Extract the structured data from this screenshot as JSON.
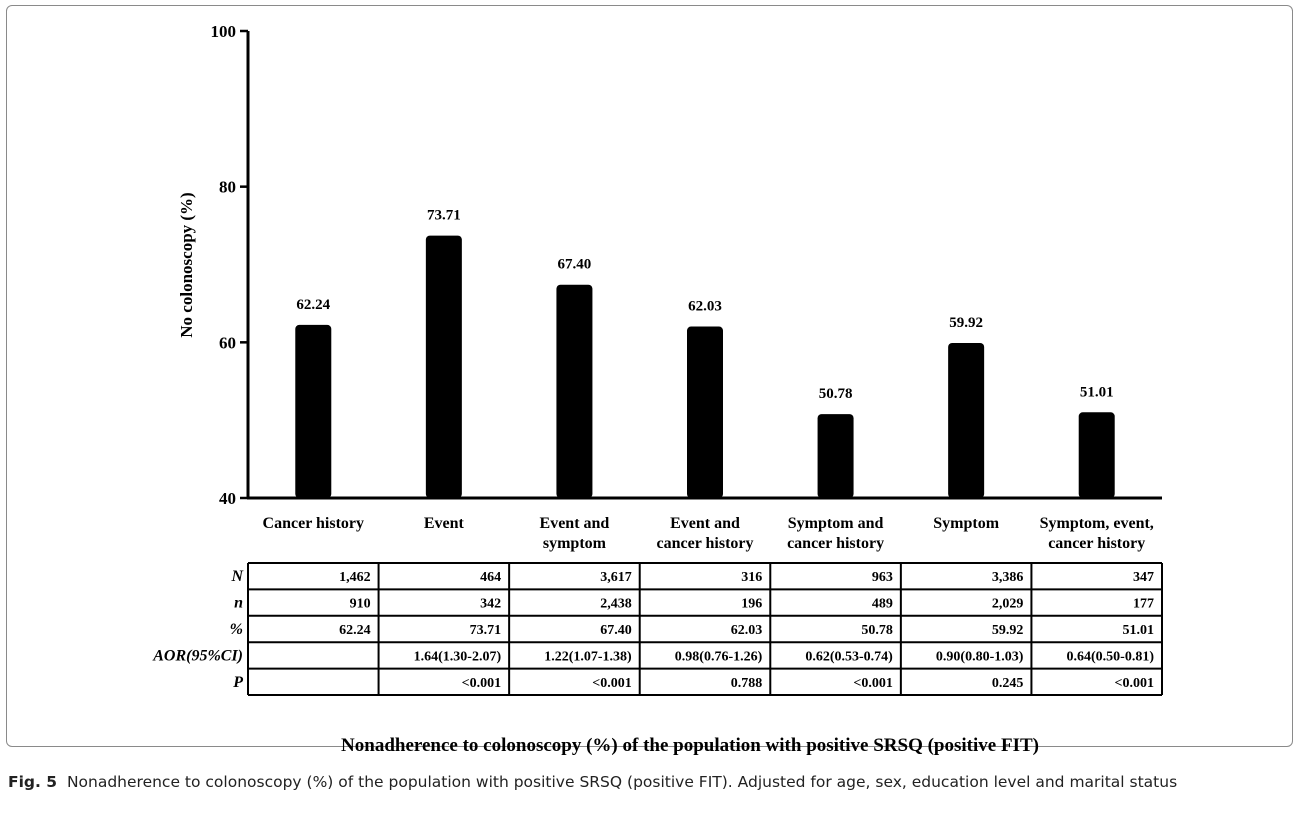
{
  "figure": {
    "label": "Fig. 5",
    "caption": "Nonadherence to colonoscopy (%) of the population with positive SRSQ (positive FIT). Adjusted for age, sex, education level and marital status"
  },
  "chart_data": {
    "type": "bar",
    "title": "Nonadherence to colonoscopy (%) of the population with positive SRSQ (positive FIT)",
    "ylabel": "No colonoscopy (%)",
    "ylim": [
      40,
      100
    ],
    "yticks": [
      40,
      60,
      80,
      100
    ],
    "categories": [
      [
        "Cancer history"
      ],
      [
        "Event"
      ],
      [
        "Event and",
        "symptom"
      ],
      [
        "Event and",
        "cancer history"
      ],
      [
        "Symptom and",
        "cancer history"
      ],
      [
        "Symptom"
      ],
      [
        "Symptom, event,",
        "cancer history"
      ]
    ],
    "values": [
      62.24,
      73.71,
      67.4,
      62.03,
      50.78,
      59.92,
      51.01
    ],
    "data_labels": [
      "62.24",
      "73.71",
      "67.40",
      "62.03",
      "50.78",
      "59.92",
      "51.01"
    ],
    "bar_color": "#000000",
    "table": {
      "rows": [
        {
          "label": "N",
          "values": [
            "1,462",
            "464",
            "3,617",
            "316",
            "963",
            "3,386",
            "347"
          ]
        },
        {
          "label": "n",
          "values": [
            "910",
            "342",
            "2,438",
            "196",
            "489",
            "2,029",
            "177"
          ]
        },
        {
          "label": "%",
          "values": [
            "62.24",
            "73.71",
            "67.40",
            "62.03",
            "50.78",
            "59.92",
            "51.01"
          ]
        },
        {
          "label": "AOR(95%CI)",
          "values": [
            "",
            "1.64(1.30-2.07)",
            "1.22(1.07-1.38)",
            "0.98(0.76-1.26)",
            "0.62(0.53-0.74)",
            "0.90(0.80-1.03)",
            "0.64(0.50-0.81)"
          ]
        },
        {
          "label": "P",
          "values": [
            "",
            "<0.001",
            "<0.001",
            "0.788",
            "<0.001",
            "0.245",
            "<0.001"
          ]
        }
      ]
    }
  }
}
